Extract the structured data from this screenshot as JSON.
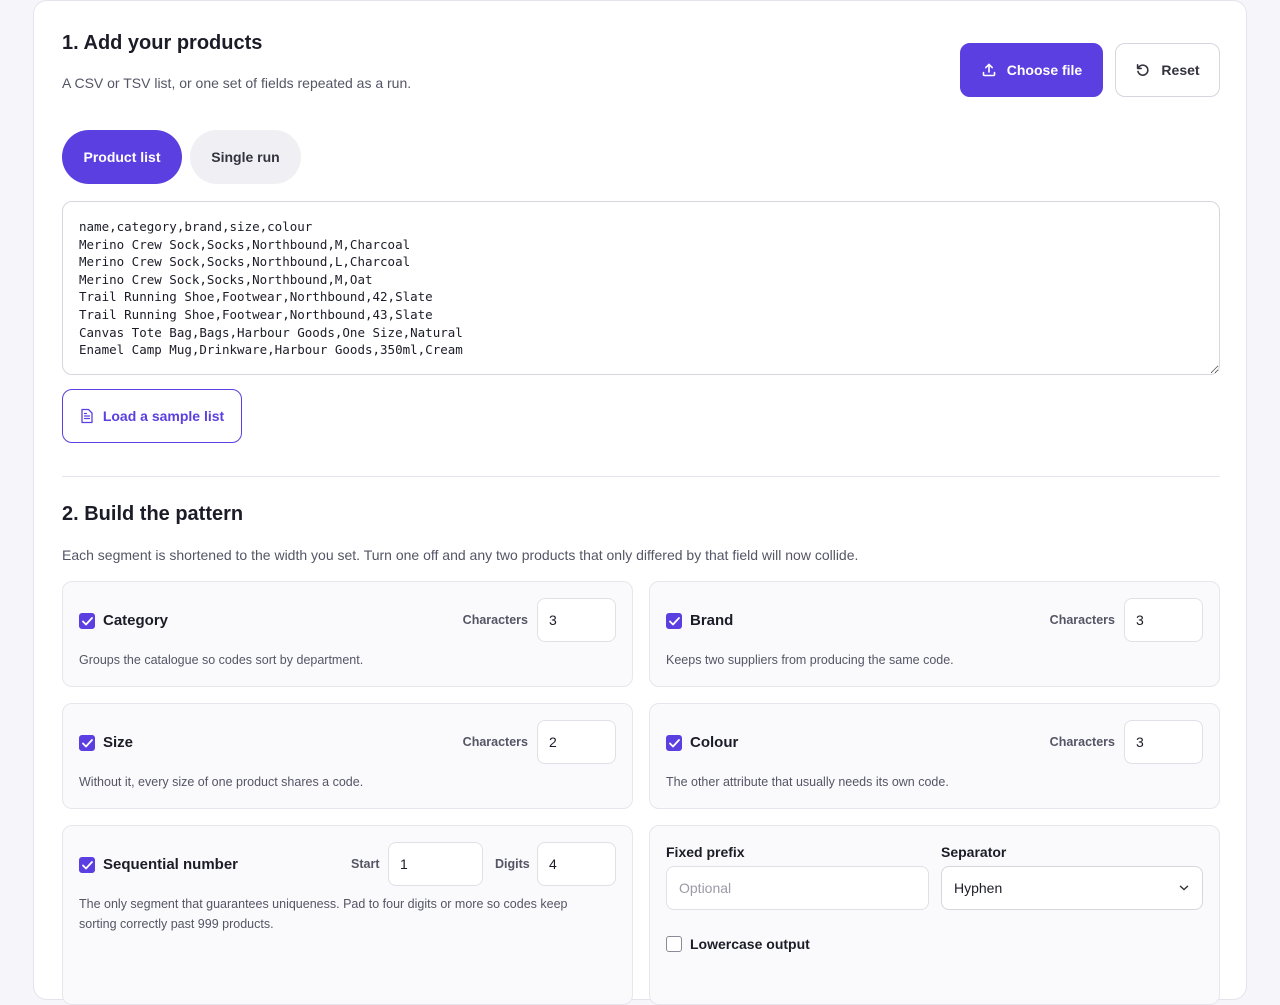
{
  "section1": {
    "title": "1. Add your products",
    "subtitle": "A CSV or TSV list, or one set of fields repeated as a run.",
    "choose_file_label": "Choose file",
    "reset_label": "Reset",
    "modes": [
      {
        "label": "Product list",
        "active": true
      },
      {
        "label": "Single run",
        "active": false
      }
    ],
    "csv_text": "name,category,brand,size,colour\nMerino Crew Sock,Socks,Northbound,M,Charcoal\nMerino Crew Sock,Socks,Northbound,L,Charcoal\nMerino Crew Sock,Socks,Northbound,M,Oat\nTrail Running Shoe,Footwear,Northbound,42,Slate\nTrail Running Shoe,Footwear,Northbound,43,Slate\nCanvas Tote Bag,Bags,Harbour Goods,One Size,Natural\nEnamel Camp Mug,Drinkware,Harbour Goods,350ml,Cream",
    "sample_button_label": "Load a sample list"
  },
  "section2": {
    "title": "2. Build the pattern",
    "subtitle": "Each segment is shortened to the width you set. Turn one off and any two products that only differed by that field will now collide.",
    "chars_label": "Characters",
    "segments": [
      {
        "label": "Category",
        "checked": true,
        "chars": "3",
        "desc": "Groups the catalogue so codes sort by department."
      },
      {
        "label": "Brand",
        "checked": true,
        "chars": "3",
        "desc": "Keeps two suppliers from producing the same code."
      },
      {
        "label": "Size",
        "checked": true,
        "chars": "2",
        "desc": "Without it, every size of one product shares a code."
      },
      {
        "label": "Colour",
        "checked": true,
        "chars": "3",
        "desc": "The other attribute that usually needs its own code."
      }
    ],
    "sequential": {
      "label": "Sequential number",
      "checked": true,
      "start_label": "Start",
      "start_value": "1",
      "digits_label": "Digits",
      "digits_value": "4",
      "desc": "The only segment that guarantees uniqueness. Pad to four digits or more so codes keep sorting correctly past 999 products."
    },
    "options": {
      "prefix_label": "Fixed prefix",
      "prefix_placeholder": "Optional",
      "prefix_value": "",
      "separator_label": "Separator",
      "separator_value": "Hyphen",
      "lowercase_label": "Lowercase output",
      "lowercase_checked": false
    }
  },
  "colors": {
    "accent": "#5b3fe0",
    "border": "#e4e4ec"
  }
}
